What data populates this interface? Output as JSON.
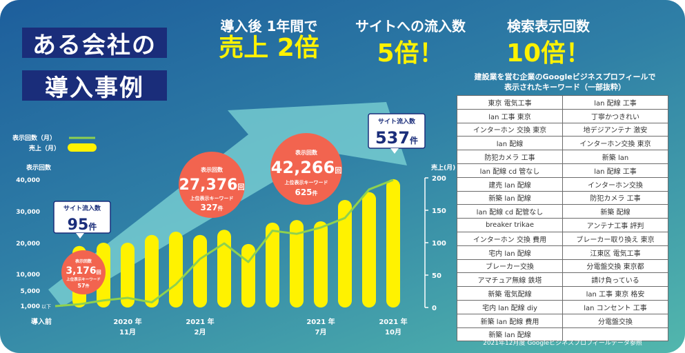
{
  "title": {
    "line1": "ある会社の",
    "line2": "導入事例"
  },
  "headlines": [
    {
      "top": "導入後 1年間で",
      "big": "売上 2倍"
    },
    {
      "top": "サイトへの流入数",
      "big": "5倍！"
    },
    {
      "top": "検索表示回数",
      "big": "10倍！"
    }
  ],
  "legend": {
    "line": "表示回数（月）",
    "bar": "売上（月）"
  },
  "colors": {
    "bar": "#fff200",
    "line": "#8fd14f",
    "callout": "#f2644f",
    "arrow": "#7fd6d6"
  },
  "chart_data": {
    "type": "bar",
    "y_left_label": "表示回数",
    "y_left_ticks": [
      "40,000",
      "30,000",
      "20,000",
      "10,000",
      "5,000",
      "1,000"
    ],
    "y_left_suffix": "以下",
    "y_right_label": "売上(月)",
    "y_right_ticks": [
      0,
      50,
      100,
      150,
      200
    ],
    "ylim_right": [
      0,
      200
    ],
    "x_labels": [
      {
        "index": 0,
        "line1": "導入前",
        "line2": ""
      },
      {
        "index": 3,
        "line1": "2020 年",
        "line2": "11月"
      },
      {
        "index": 6,
        "line1": "2021 年",
        "line2": "2月"
      },
      {
        "index": 11,
        "line1": "2021 年",
        "line2": "7月"
      },
      {
        "index": 14,
        "line1": "2021 年",
        "line2": "10月"
      }
    ],
    "series": [
      {
        "name": "売上（月）",
        "kind": "bar",
        "values": [
          95,
          100,
          100,
          112,
          117,
          112,
          120,
          98,
          131,
          135,
          133,
          166,
          178,
          198
        ]
      },
      {
        "name": "表示回数（月）",
        "kind": "line",
        "values": [
          1000,
          1500,
          2500,
          3176,
          2000,
          7000,
          15000,
          20000,
          14000,
          24000,
          23000,
          25000,
          28000,
          37000,
          44000
        ]
      }
    ]
  },
  "callouts": {
    "start": {
      "title": "サイト流入数",
      "value": "95",
      "unit": "件"
    },
    "end": {
      "title": "サイト流入数",
      "value": "537",
      "unit": "件"
    },
    "c1": {
      "label": "表示回数",
      "value": "3,176",
      "unit": "回",
      "kw_label": "上位表示キーワード",
      "kw": "57",
      "kw_unit": "件"
    },
    "c2": {
      "label": "表示回数",
      "value": "27,376",
      "unit": "回",
      "kw_label": "上位表示キーワード",
      "kw": "327",
      "kw_unit": "件"
    },
    "c3": {
      "label": "表示回数",
      "value": "42,266",
      "unit": "回",
      "kw_label": "上位表示キーワード",
      "kw": "625",
      "kw_unit": "件"
    }
  },
  "keyword_table": {
    "title_line1": "建設業を営む企業のGoogleビジネスプロフィールで",
    "title_line2": "表示されたキーワード（一部抜粋）",
    "rows": [
      [
        "東京 電気工事",
        "lan 配線 工事"
      ],
      [
        "lan 工事 東京",
        "丁寧かつきれい"
      ],
      [
        "インターホン 交換 東京",
        "地デジアンテナ 激安"
      ],
      [
        "lan 配線",
        "インターホン交換 東京"
      ],
      [
        "防犯カメラ 工事",
        "新築 lan"
      ],
      [
        "lan 配線 cd 管なし",
        "lan 配線 工事"
      ],
      [
        "建売 lan 配線",
        "インターホン交換"
      ],
      [
        "新築 lan 配線",
        "防犯カメラ 工事"
      ],
      [
        "lan 配線 cd 配管なし",
        "新築 配線"
      ],
      [
        "breaker trikae",
        "アンテナ工事 評判"
      ],
      [
        "インターホン 交換 費用",
        "ブレーカー取り換え 東京"
      ],
      [
        "宅内 lan 配線",
        "江東区 電気工事"
      ],
      [
        "ブレーカー交換",
        "分電盤交換 東京都"
      ],
      [
        "アマチュア無線 鉄塔",
        "請け負っている"
      ],
      [
        "新築 電気配線",
        "lan 工事 東京 格安"
      ],
      [
        "宅内 lan 配線 diy",
        "lan コンセント 工事"
      ],
      [
        "新築 lan 配線 費用",
        "分電盤交換"
      ],
      [
        "新築 lan 配線",
        ""
      ]
    ],
    "footnote": "2021年12月度 Googleビジネスプロフィールデータ参照"
  }
}
